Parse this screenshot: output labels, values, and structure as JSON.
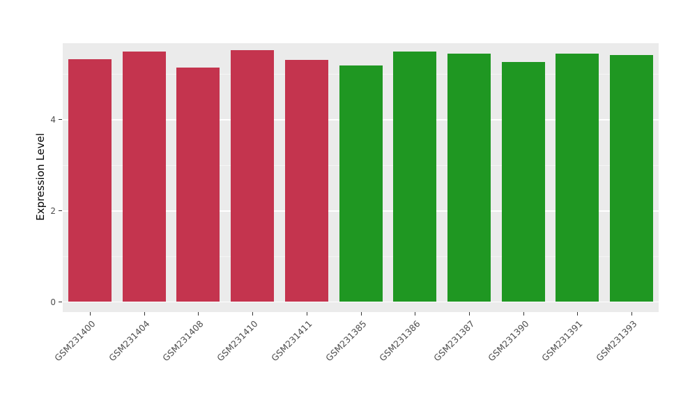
{
  "chart_data": {
    "type": "bar",
    "title": "",
    "xlabel": "",
    "ylabel": "Expression Level",
    "categories": [
      "GSM231400",
      "GSM231404",
      "GSM231408",
      "GSM231410",
      "GSM231411",
      "GSM231385",
      "GSM231386",
      "GSM231387",
      "GSM231390",
      "GSM231391",
      "GSM231393"
    ],
    "values": [
      5.32,
      5.49,
      5.14,
      5.52,
      5.31,
      5.18,
      5.49,
      5.44,
      5.26,
      5.44,
      5.41
    ],
    "groups": [
      "red",
      "red",
      "red",
      "red",
      "red",
      "green",
      "green",
      "green",
      "green",
      "green",
      "green"
    ],
    "group_colors": {
      "red": "#C4344E",
      "green": "#1F9722"
    },
    "ylim": [
      0,
      5.67
    ],
    "yticks": [
      0,
      2,
      4
    ],
    "ytick_labels": [
      "0",
      "2",
      "4"
    ],
    "minor_gridlines": [
      1,
      3,
      5
    ],
    "grid": "on",
    "legend": "none",
    "panel_background": "#EBEBEB",
    "figure_background": "#FFFFFF"
  }
}
